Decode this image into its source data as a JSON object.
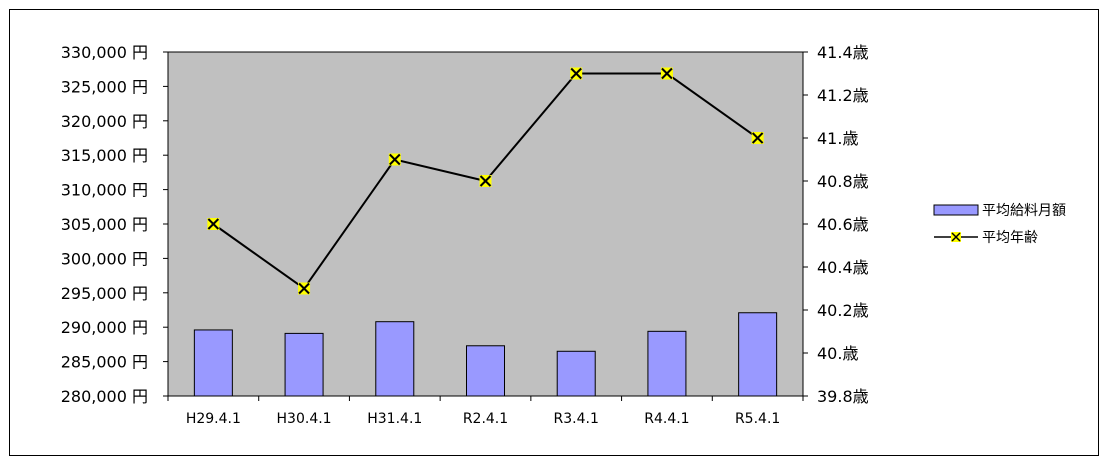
{
  "chart_data": {
    "type": "bar",
    "categories": [
      "H29.4.1",
      "H30.4.1",
      "H31.4.1",
      "R2.4.1",
      "R3.4.1",
      "R4.4.1",
      "R5.4.1"
    ],
    "series": [
      {
        "name": "平均給料月額",
        "type": "bar",
        "axis": "left",
        "values": [
          289600,
          289100,
          290800,
          287300,
          286500,
          289400,
          292100
        ]
      },
      {
        "name": "平均年齢",
        "type": "line",
        "axis": "right",
        "values": [
          40.6,
          40.3,
          40.9,
          40.8,
          41.3,
          41.3,
          41.0
        ]
      }
    ],
    "y_left": {
      "range": [
        280000,
        330000
      ],
      "tick_labels": [
        "330,000 円",
        "325,000 円",
        "320,000 円",
        "315,000 円",
        "310,000 円",
        "305,000 円",
        "300,000 円",
        "295,000 円",
        "290,000 円",
        "285,000 円",
        "280,000 円"
      ]
    },
    "y_right": {
      "range": [
        39.8,
        41.4
      ],
      "tick_labels": [
        "41.4歳",
        "41.2歳",
        "41.歳",
        "40.8歳",
        "40.6歳",
        "40.4歳",
        "40.2歳",
        "40.歳",
        "39.8歳"
      ]
    },
    "legend_position": "right",
    "grid": false,
    "colors": {
      "plot_background": "#c0c0c0",
      "bar_fill": "#9999ff",
      "line": "#000000",
      "marker_fill": "#ffff00"
    }
  }
}
